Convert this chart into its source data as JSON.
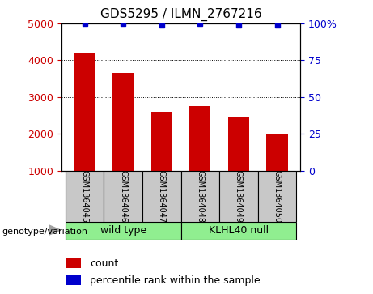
{
  "title": "GDS5295 / ILMN_2767216",
  "samples": [
    "GSM1364045",
    "GSM1364046",
    "GSM1364047",
    "GSM1364048",
    "GSM1364049",
    "GSM1364050"
  ],
  "counts": [
    4200,
    3650,
    2600,
    2750,
    2450,
    1980
  ],
  "percentile_ranks": [
    100,
    100,
    99,
    100,
    99,
    99
  ],
  "ylim_left": [
    1000,
    5000
  ],
  "ylim_right": [
    0,
    100
  ],
  "yticks_left": [
    1000,
    2000,
    3000,
    4000,
    5000
  ],
  "yticks_right": [
    0,
    25,
    50,
    75,
    100
  ],
  "bar_color": "#cc0000",
  "dot_color": "#0000cc",
  "group_labels": [
    "wild type",
    "KLHL40 null"
  ],
  "box_color": "#c8c8c8",
  "legend_items": [
    {
      "label": "count",
      "color": "#cc0000"
    },
    {
      "label": "percentile rank within the sample",
      "color": "#0000cc"
    }
  ],
  "genotype_label": "genotype/variation",
  "green_color": "#90ee90"
}
